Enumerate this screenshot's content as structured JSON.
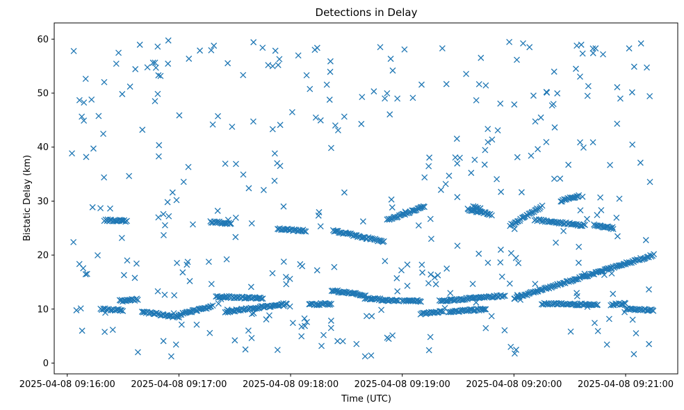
{
  "chart_data": {
    "type": "scatter",
    "title": "Detections in Delay",
    "xlabel": "Time (UTC)",
    "ylabel": "Bistatic Delay (km)",
    "x_ticks": [
      {
        "seconds": 0,
        "label": "2025-04-08 09:16:00"
      },
      {
        "seconds": 60,
        "label": "2025-04-08 09:17:00"
      },
      {
        "seconds": 120,
        "label": "2025-04-08 09:18:00"
      },
      {
        "seconds": 180,
        "label": "2025-04-08 09:19:00"
      },
      {
        "seconds": 240,
        "label": "2025-04-08 09:20:00"
      },
      {
        "seconds": 300,
        "label": "2025-04-08 09:21:00"
      }
    ],
    "y_ticks": [
      0,
      10,
      20,
      30,
      40,
      50,
      60
    ],
    "xlim_labels": [
      "2025-04-08 09:15:53",
      "2025-04-08 09:21:28"
    ],
    "ylim": [
      -2,
      63
    ],
    "marker": "x",
    "color": "#1f77b4",
    "grid": false,
    "legend": "none",
    "data_time_range": [
      "2025-04-08 09:16:02",
      "2025-04-08 09:21:15"
    ],
    "data_delay_range_km": [
      0.5,
      60
    ],
    "tracks": [
      {
        "from": [
          "2025-04-08 09:16:20",
          26.5
        ],
        "to": [
          "2025-04-08 09:16:32",
          26.3
        ]
      },
      {
        "from": [
          "2025-04-08 09:17:17",
          26.2
        ],
        "to": [
          "2025-04-08 09:17:28",
          25.8
        ]
      },
      {
        "from": [
          "2025-04-08 09:17:53",
          24.8
        ],
        "to": [
          "2025-04-08 09:18:08",
          24.5
        ]
      },
      {
        "from": [
          "2025-04-08 09:18:23",
          24.5
        ],
        "to": [
          "2025-04-08 09:18:50",
          22.5
        ]
      },
      {
        "from": [
          "2025-04-08 09:18:52",
          26.5
        ],
        "to": [
          "2025-04-08 09:19:12",
          29.0
        ]
      },
      {
        "from": [
          "2025-04-08 09:19:38",
          29.0
        ],
        "to": [
          "2025-04-08 09:19:42",
          28.5
        ]
      },
      {
        "from": [
          "2025-04-08 09:19:35",
          28.5
        ],
        "to": [
          "2025-04-08 09:19:48",
          27.5
        ]
      },
      {
        "from": [
          "2025-04-08 09:19:58",
          25.5
        ],
        "to": [
          "2025-04-08 09:20:15",
          29.0
        ]
      },
      {
        "from": [
          "2025-04-08 09:20:12",
          26.5
        ],
        "to": [
          "2025-04-08 09:20:38",
          25.5
        ]
      },
      {
        "from": [
          "2025-04-08 09:20:25",
          30.0
        ],
        "to": [
          "2025-04-08 09:20:35",
          31.0
        ]
      },
      {
        "from": [
          "2025-04-08 09:20:43",
          25.5
        ],
        "to": [
          "2025-04-08 09:20:53",
          25.0
        ]
      },
      {
        "from": [
          "2025-04-08 09:16:18",
          10.0
        ],
        "to": [
          "2025-04-08 09:16:30",
          9.8
        ]
      },
      {
        "from": [
          "2025-04-08 09:16:28",
          11.5
        ],
        "to": [
          "2025-04-08 09:16:38",
          11.8
        ]
      },
      {
        "from": [
          "2025-04-08 09:16:40",
          9.5
        ],
        "to": [
          "2025-04-08 09:17:00",
          8.5
        ]
      },
      {
        "from": [
          "2025-04-08 09:17:00",
          9.0
        ],
        "to": [
          "2025-04-08 09:17:18",
          10.5
        ]
      },
      {
        "from": [
          "2025-04-08 09:17:20",
          12.3
        ],
        "to": [
          "2025-04-08 09:17:45",
          12.0
        ]
      },
      {
        "from": [
          "2025-04-08 09:17:25",
          9.5
        ],
        "to": [
          "2025-04-08 09:17:58",
          11.0
        ]
      },
      {
        "from": [
          "2025-04-08 09:18:10",
          10.8
        ],
        "to": [
          "2025-04-08 09:18:22",
          11.0
        ]
      },
      {
        "from": [
          "2025-04-08 09:18:22",
          13.5
        ],
        "to": [
          "2025-04-08 09:18:40",
          12.5
        ]
      },
      {
        "from": [
          "2025-04-08 09:18:40",
          12.0
        ],
        "to": [
          "2025-04-08 09:18:58",
          11.5
        ]
      },
      {
        "from": [
          "2025-04-08 09:19:00",
          11.5
        ],
        "to": [
          "2025-04-08 09:19:10",
          11.5
        ]
      },
      {
        "from": [
          "2025-04-08 09:19:10",
          9.2
        ],
        "to": [
          "2025-04-08 09:19:22",
          9.5
        ]
      },
      {
        "from": [
          "2025-04-08 09:19:20",
          11.5
        ],
        "to": [
          "2025-04-08 09:19:55",
          12.5
        ]
      },
      {
        "from": [
          "2025-04-08 09:19:25",
          9.5
        ],
        "to": [
          "2025-04-08 09:19:45",
          10.0
        ]
      },
      {
        "from": [
          "2025-04-08 09:20:00",
          12.0
        ],
        "to": [
          "2025-04-08 09:21:15",
          20.0
        ]
      },
      {
        "from": [
          "2025-04-08 09:20:15",
          11.0
        ],
        "to": [
          "2025-04-08 09:20:45",
          10.8
        ]
      },
      {
        "from": [
          "2025-04-08 09:20:52",
          10.8
        ],
        "to": [
          "2025-04-08 09:21:00",
          11.0
        ]
      },
      {
        "from": [
          "2025-04-08 09:21:00",
          10.0
        ],
        "to": [
          "2025-04-08 09:21:15",
          9.8
        ]
      }
    ],
    "scatter_count": 360
  }
}
